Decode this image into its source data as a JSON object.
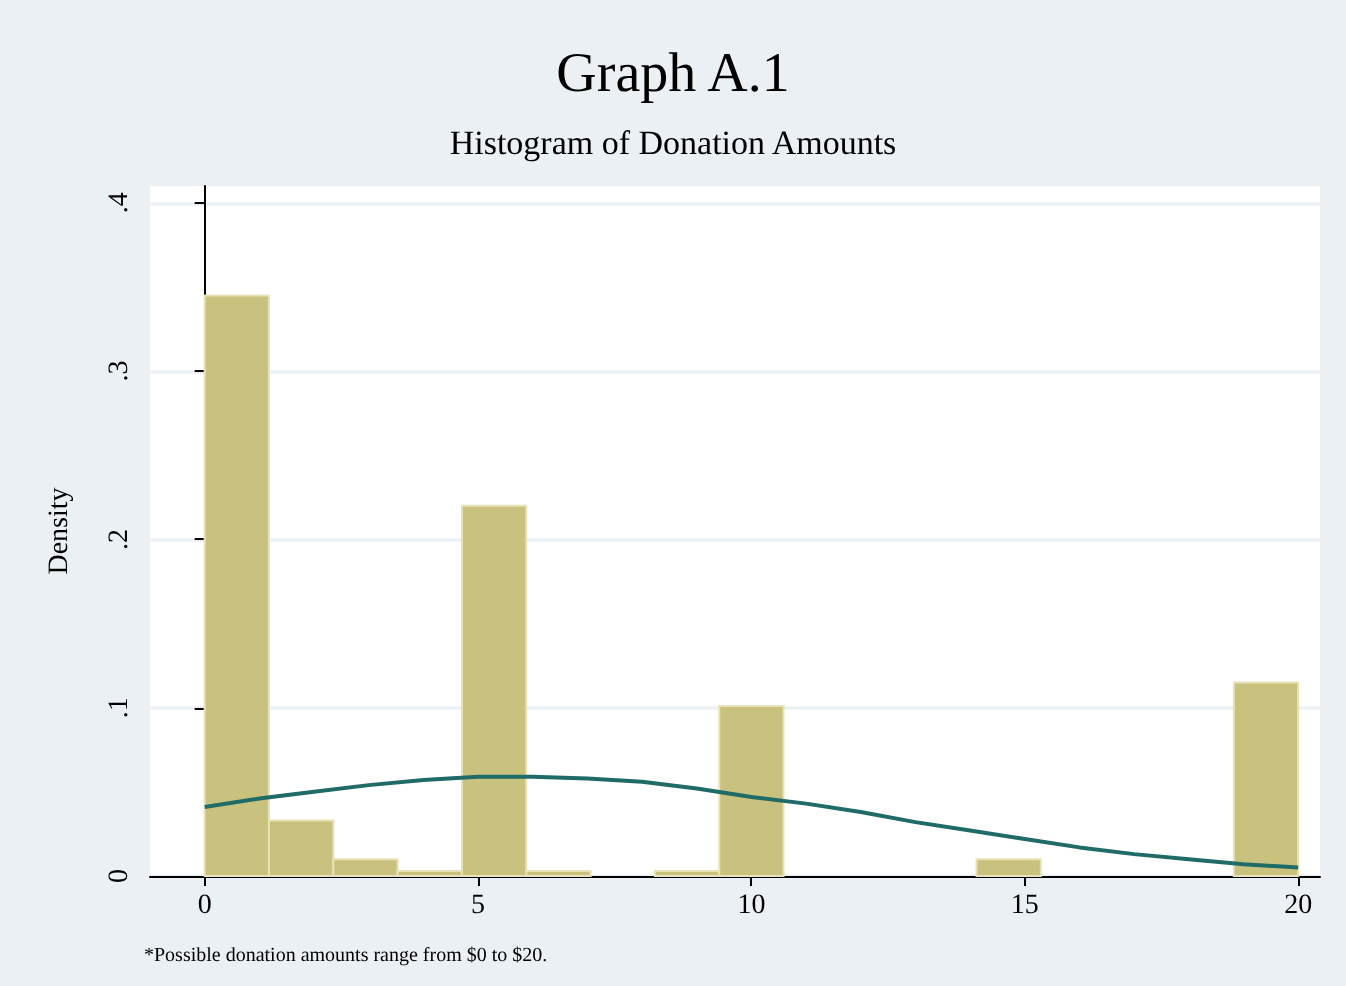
{
  "chart_data": {
    "type": "histogram",
    "title": "Graph A.1",
    "subtitle": "Histogram of Donation Amounts",
    "ylabel": "Density",
    "annotations": [
      "*Possible donation amounts range from $0 to $20."
    ],
    "bins": [
      0,
      1.176,
      2.353,
      3.529,
      4.706,
      5.882,
      7.059,
      8.235,
      9.412,
      10.588,
      11.765,
      12.941,
      14.118,
      15.294,
      16.471,
      17.647,
      18.824,
      20
    ],
    "series": [
      {
        "color": "#c9c27f",
        "values": [
          0.345,
          0.033,
          0.01,
          0.003,
          0.22,
          0.003,
          0,
          0.003,
          0.101,
          0,
          0,
          0,
          0.01,
          0,
          0,
          0,
          0.115
        ]
      },
      {
        "type": "line",
        "color": "#1f6b68",
        "x": [
          0,
          1,
          2,
          3,
          4,
          5,
          6,
          7,
          8,
          9,
          10,
          11,
          12,
          13,
          14,
          15,
          16,
          17,
          18,
          19,
          20
        ],
        "values": [
          0.041,
          0.046,
          0.05,
          0.054,
          0.057,
          0.059,
          0.059,
          0.058,
          0.056,
          0.052,
          0.047,
          0.043,
          0.038,
          0.032,
          0.027,
          0.022,
          0.017,
          0.013,
          0.01,
          0.007,
          0.005
        ]
      }
    ],
    "xlim": [
      -1,
      20.4
    ],
    "xticks": [
      0,
      5,
      10,
      15,
      20
    ],
    "ylim": [
      0,
      0.41
    ],
    "yticks": [
      0,
      {
        "value": 0.1,
        "label": ".1"
      },
      {
        "value": 0.2,
        "label": ".2"
      },
      {
        "value": 0.3,
        "label": ".3"
      },
      {
        "value": 0.4,
        "label": ".4"
      }
    ],
    "grid": "y",
    "marker": "none"
  }
}
